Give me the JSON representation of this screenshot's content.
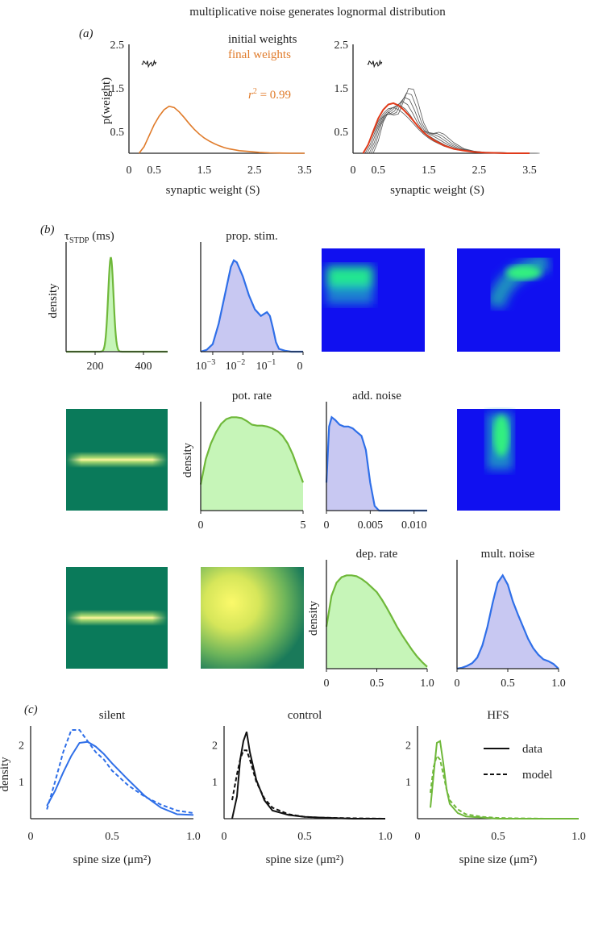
{
  "figure_title": "multiplicative noise generates lognormal distribution",
  "panels": {
    "a": "(a)",
    "b": "(b)",
    "c": "(c)"
  },
  "colors": {
    "orange": "#e07b2a",
    "black": "#111111",
    "blue": "#2f6fe8",
    "blue_fill": "#c8c8f2",
    "green": "#6fb83a",
    "green_fill": "#c6f5b8",
    "heat_blue": "#1010f0",
    "heat_green": "#0a7a5a",
    "red": "#e03a1a"
  },
  "chart_data": [
    {
      "id": "a_left",
      "type": "line",
      "xlabel": "synaptic weight (S)",
      "ylabel": "p(weight)",
      "xticks": [
        "0",
        "0.5",
        "1.5",
        "2.5",
        "3.5"
      ],
      "yticks": [
        "0.5",
        "1.5",
        "2.5"
      ],
      "xlim": [
        0,
        3.5
      ],
      "ylim": [
        0,
        2.5
      ],
      "legend": [
        "initial weights",
        "final weights"
      ],
      "annotation": "r² = 0.99",
      "annotation_pre": "r",
      "annotation_sup": "2",
      "annotation_post": " = 0.99",
      "series": [
        {
          "name": "final weights",
          "color": "orange",
          "x": [
            0.2,
            0.3,
            0.4,
            0.5,
            0.6,
            0.7,
            0.8,
            0.9,
            1.0,
            1.1,
            1.2,
            1.3,
            1.4,
            1.5,
            1.6,
            1.7,
            1.8,
            1.9,
            2.0,
            2.2,
            2.4,
            2.6,
            2.8,
            3.0,
            3.2,
            3.5
          ],
          "y": [
            0.0,
            0.15,
            0.4,
            0.65,
            0.85,
            1.0,
            1.08,
            1.05,
            0.95,
            0.82,
            0.68,
            0.55,
            0.44,
            0.35,
            0.28,
            0.22,
            0.17,
            0.13,
            0.1,
            0.06,
            0.04,
            0.02,
            0.01,
            0.005,
            0.0,
            0.0
          ]
        }
      ],
      "initial_weights": {
        "x_range": [
          0.38,
          0.68
        ],
        "y": 2.05,
        "color": "black"
      }
    },
    {
      "id": "a_right",
      "type": "line",
      "xlabel": "synaptic weight (S)",
      "xticks": [
        "0",
        "0.5",
        "1.5",
        "2.5",
        "3.5"
      ],
      "yticks": [
        "0.5",
        "1.5",
        "2.5"
      ],
      "xlim": [
        0,
        3.5
      ],
      "ylim": [
        0,
        2.5
      ],
      "initial_weights": {
        "x_range": [
          0.38,
          0.68
        ],
        "y": 2.05,
        "color": "black"
      },
      "final_curve": {
        "color": "red",
        "x": [
          0.2,
          0.3,
          0.4,
          0.5,
          0.6,
          0.7,
          0.8,
          0.9,
          1.0,
          1.1,
          1.2,
          1.3,
          1.4,
          1.5,
          1.6,
          1.8,
          2.0,
          2.2,
          2.4,
          2.6,
          2.8,
          3.0,
          3.5
        ],
        "y": [
          0.0,
          0.2,
          0.5,
          0.8,
          1.0,
          1.12,
          1.15,
          1.1,
          1.0,
          0.88,
          0.74,
          0.6,
          0.48,
          0.38,
          0.3,
          0.18,
          0.1,
          0.06,
          0.03,
          0.015,
          0.01,
          0.0,
          0.0
        ]
      },
      "intermediate_peaks": [
        1.05,
        1.1,
        1.15,
        1.2,
        1.25,
        1.3
      ]
    },
    {
      "id": "b_tau",
      "type": "area",
      "title": "τSTDP (ms)",
      "title_sym": "τ",
      "title_sub": "STDP",
      "title_post": " (ms)",
      "ylabel": "density",
      "xticks": [
        "200",
        "400"
      ],
      "xlim": [
        80,
        500
      ],
      "color": "green",
      "peak": 265,
      "width": 11
    },
    {
      "id": "b_prop",
      "type": "area",
      "title": "prop. stim.",
      "color": "blue",
      "xticks": [
        "10⁻³",
        "10⁻²",
        "10⁻¹",
        "0"
      ],
      "xtick_base": [
        "10",
        "10",
        "10",
        "0"
      ],
      "xtick_exp": [
        "−3",
        "−2",
        "−1",
        ""
      ],
      "x": [
        -3.4,
        -3.2,
        -3.0,
        -2.8,
        -2.6,
        -2.4,
        -2.3,
        -2.2,
        -2.0,
        -1.8,
        -1.6,
        -1.4,
        -1.3,
        -1.2,
        -1.1,
        -1.0,
        -0.9,
        -0.8,
        -0.6,
        -0.4,
        -0.2,
        0.0
      ],
      "y": [
        0.0,
        0.02,
        0.08,
        0.3,
        0.6,
        0.9,
        0.97,
        0.95,
        0.8,
        0.6,
        0.45,
        0.38,
        0.4,
        0.42,
        0.38,
        0.25,
        0.1,
        0.03,
        0.01,
        0.0,
        0.0,
        0.0
      ],
      "xlim": [
        -3.4,
        0.0
      ]
    },
    {
      "id": "b_pot",
      "type": "area",
      "title": "pot. rate",
      "ylabel": "density",
      "color": "green",
      "xticks": [
        "0",
        "5"
      ],
      "xlim": [
        0,
        5
      ],
      "x": [
        0,
        0.25,
        0.5,
        0.75,
        1.0,
        1.25,
        1.5,
        1.75,
        2.0,
        2.25,
        2.5,
        2.75,
        3.0,
        3.25,
        3.5,
        3.75,
        4.0,
        4.25,
        4.5,
        4.75,
        5.0
      ],
      "y": [
        0.28,
        0.55,
        0.72,
        0.84,
        0.93,
        0.98,
        1.0,
        1.0,
        0.99,
        0.96,
        0.92,
        0.91,
        0.91,
        0.9,
        0.88,
        0.85,
        0.8,
        0.72,
        0.6,
        0.45,
        0.3
      ]
    },
    {
      "id": "b_add",
      "type": "area",
      "title": "add. noise",
      "color": "blue",
      "xticks": [
        "0",
        "0.005",
        "0.010"
      ],
      "xlim": [
        0,
        0.0115
      ],
      "x": [
        0,
        0.0003,
        0.0006,
        0.001,
        0.0015,
        0.002,
        0.0025,
        0.003,
        0.0035,
        0.004,
        0.0045,
        0.005,
        0.0055,
        0.006,
        0.007,
        0.008,
        0.009,
        0.01,
        0.0115
      ],
      "y": [
        0.3,
        0.9,
        1.0,
        0.97,
        0.92,
        0.9,
        0.9,
        0.88,
        0.84,
        0.8,
        0.65,
        0.3,
        0.05,
        0.0,
        0.0,
        0.0,
        0.0,
        0.0,
        0.0
      ]
    },
    {
      "id": "b_dep",
      "type": "area",
      "title": "dep. rate",
      "ylabel": "density",
      "color": "green",
      "xticks": [
        "0",
        "0.5",
        "1.0"
      ],
      "xlim": [
        0,
        1.0
      ],
      "x": [
        0,
        0.05,
        0.1,
        0.15,
        0.2,
        0.25,
        0.3,
        0.35,
        0.4,
        0.45,
        0.5,
        0.55,
        0.6,
        0.65,
        0.7,
        0.75,
        0.8,
        0.85,
        0.9,
        0.95,
        1.0
      ],
      "y": [
        0.45,
        0.78,
        0.92,
        0.98,
        1.0,
        1.0,
        0.99,
        0.96,
        0.92,
        0.87,
        0.82,
        0.74,
        0.65,
        0.55,
        0.45,
        0.36,
        0.28,
        0.2,
        0.13,
        0.07,
        0.02
      ]
    },
    {
      "id": "b_mult",
      "type": "area",
      "title": "mult. noise",
      "color": "blue",
      "xticks": [
        "0",
        "0.5",
        "1.0"
      ],
      "xlim": [
        0,
        1.0
      ],
      "x": [
        0,
        0.05,
        0.1,
        0.15,
        0.2,
        0.25,
        0.3,
        0.35,
        0.4,
        0.45,
        0.5,
        0.55,
        0.6,
        0.65,
        0.7,
        0.75,
        0.8,
        0.85,
        0.9,
        0.95,
        1.0
      ],
      "y": [
        0.0,
        0.01,
        0.03,
        0.06,
        0.12,
        0.25,
        0.45,
        0.7,
        0.92,
        1.0,
        0.9,
        0.72,
        0.58,
        0.45,
        0.32,
        0.22,
        0.15,
        0.1,
        0.08,
        0.05,
        0.0
      ]
    },
    {
      "id": "c_silent",
      "type": "line",
      "title": "silent",
      "ylabel": "density",
      "color": "blue",
      "xlabel": "spine size (μm²)",
      "xticks": [
        "0",
        "0.5",
        "1.0"
      ],
      "yticks": [
        "1",
        "2"
      ],
      "xlim": [
        0,
        1.0
      ],
      "ylim": [
        0,
        2.4
      ],
      "series": [
        {
          "name": "data",
          "style": "solid",
          "x": [
            0.1,
            0.15,
            0.2,
            0.25,
            0.3,
            0.35,
            0.4,
            0.45,
            0.5,
            0.6,
            0.7,
            0.8,
            0.9,
            1.0
          ],
          "y": [
            0.35,
            0.75,
            1.25,
            1.7,
            2.05,
            2.08,
            1.95,
            1.75,
            1.5,
            1.05,
            0.62,
            0.3,
            0.12,
            0.1
          ]
        },
        {
          "name": "model",
          "style": "dashed",
          "x": [
            0.1,
            0.15,
            0.2,
            0.25,
            0.3,
            0.35,
            0.4,
            0.45,
            0.5,
            0.6,
            0.7,
            0.8,
            0.9,
            1.0
          ],
          "y": [
            0.25,
            1.0,
            1.8,
            2.4,
            2.4,
            2.1,
            1.8,
            1.6,
            1.3,
            0.9,
            0.6,
            0.38,
            0.22,
            0.15
          ]
        }
      ]
    },
    {
      "id": "c_control",
      "type": "line",
      "title": "control",
      "color": "black",
      "xlabel": "spine size (μm²)",
      "xticks": [
        "0",
        "0.5",
        "1.0"
      ],
      "yticks": [
        "1",
        "2"
      ],
      "xlim": [
        0,
        1.0
      ],
      "ylim": [
        0,
        2.4
      ],
      "series": [
        {
          "name": "data",
          "style": "solid",
          "x": [
            0.05,
            0.08,
            0.1,
            0.12,
            0.14,
            0.16,
            0.2,
            0.25,
            0.3,
            0.4,
            0.5,
            0.6,
            0.8,
            1.0
          ],
          "y": [
            0.0,
            0.6,
            1.6,
            2.1,
            2.35,
            1.8,
            1.05,
            0.5,
            0.22,
            0.1,
            0.05,
            0.03,
            0.0,
            0.0
          ]
        },
        {
          "name": "model",
          "style": "dashed",
          "x": [
            0.05,
            0.08,
            0.1,
            0.12,
            0.14,
            0.16,
            0.2,
            0.25,
            0.3,
            0.4,
            0.5,
            0.6,
            0.8,
            1.0
          ],
          "y": [
            0.5,
            1.2,
            1.6,
            1.85,
            1.85,
            1.6,
            1.0,
            0.55,
            0.3,
            0.12,
            0.05,
            0.03,
            0.01,
            0.0
          ]
        }
      ]
    },
    {
      "id": "c_hfs",
      "type": "line",
      "title": "HFS",
      "color": "green",
      "xlabel": "spine size (μm²)",
      "xticks": [
        "0",
        "0.5",
        "1.0"
      ],
      "yticks": [
        "1",
        "2"
      ],
      "xlim": [
        0,
        1.0
      ],
      "ylim": [
        0,
        2.4
      ],
      "legend": [
        "data",
        "model"
      ],
      "series": [
        {
          "name": "data",
          "style": "solid",
          "x": [
            0.08,
            0.1,
            0.12,
            0.14,
            0.16,
            0.18,
            0.2,
            0.25,
            0.3,
            0.4,
            0.5,
            0.6,
            0.8,
            1.0
          ],
          "y": [
            0.3,
            1.2,
            2.05,
            2.1,
            1.5,
            0.8,
            0.4,
            0.15,
            0.06,
            0.03,
            0.0,
            0.0,
            0.0,
            0.0
          ]
        },
        {
          "name": "model",
          "style": "dashed",
          "x": [
            0.08,
            0.1,
            0.12,
            0.14,
            0.16,
            0.18,
            0.2,
            0.25,
            0.3,
            0.4,
            0.5,
            0.6,
            0.8,
            1.0
          ],
          "y": [
            0.7,
            1.4,
            1.7,
            1.6,
            1.2,
            0.8,
            0.5,
            0.25,
            0.12,
            0.05,
            0.02,
            0.01,
            0.0,
            0.0
          ]
        }
      ]
    }
  ]
}
